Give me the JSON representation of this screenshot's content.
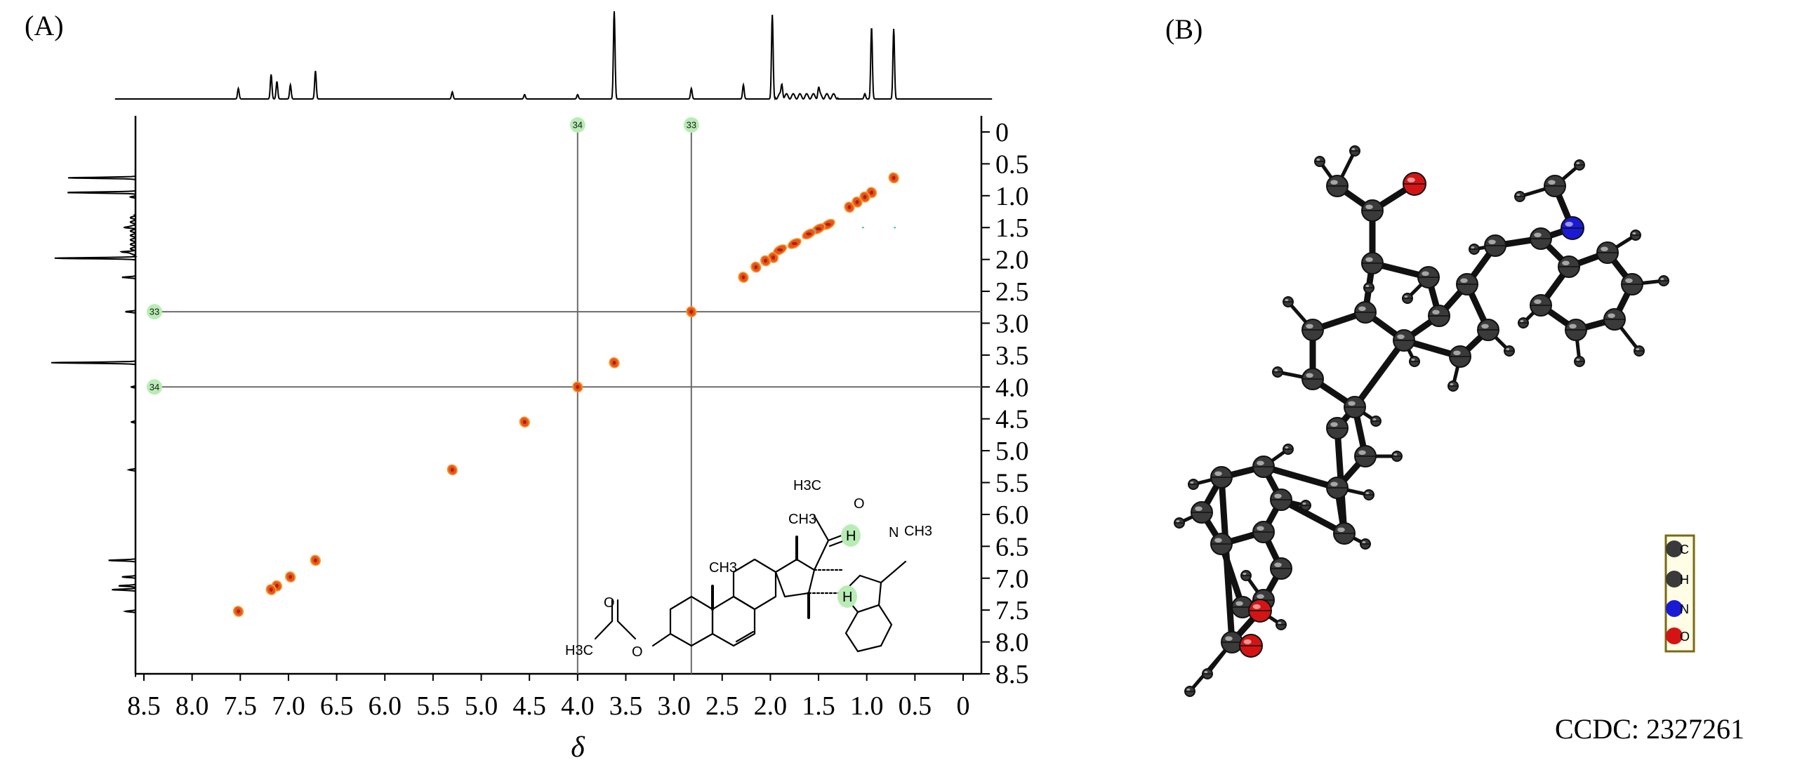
{
  "panels": {
    "a_label": "(A)",
    "b_label": "(B)"
  },
  "chart_data": {
    "type": "heatmap",
    "subtype": "2D NMR correlation map",
    "title": "",
    "xlabel": "δ",
    "ylabel": "",
    "xlim": [
      8.5,
      0
    ],
    "ylim": [
      0,
      8.5
    ],
    "x_ticks": [
      "8.5",
      "8.0",
      "7.5",
      "7.0",
      "6.5",
      "6.0",
      "5.5",
      "5.0",
      "4.5",
      "4.0",
      "3.5",
      "3.0",
      "2.5",
      "2.0",
      "1.5",
      "1.0",
      "0.5",
      "0"
    ],
    "y_ticks": [
      "0",
      "0.5",
      "1.0",
      "1.5",
      "2.0",
      "2.5",
      "3.0",
      "3.5",
      "4.0",
      "4.5",
      "5.0",
      "5.5",
      "6.0",
      "6.5",
      "7.0",
      "7.5",
      "8.0",
      "8.5"
    ],
    "y_axis_side": "right",
    "grid": false,
    "diagonal_peaks": [
      {
        "x": 0.72,
        "y": 0.72
      },
      {
        "x": 0.95,
        "y": 0.95
      },
      {
        "x": 1.02,
        "y": 1.02
      },
      {
        "x": 1.1,
        "y": 1.1
      },
      {
        "x": 1.18,
        "y": 1.18
      },
      {
        "x": 1.4,
        "y": 1.45
      },
      {
        "x": 1.5,
        "y": 1.52
      },
      {
        "x": 1.6,
        "y": 1.6
      },
      {
        "x": 1.75,
        "y": 1.75
      },
      {
        "x": 1.9,
        "y": 1.85
      },
      {
        "x": 1.97,
        "y": 1.97
      },
      {
        "x": 2.05,
        "y": 2.02
      },
      {
        "x": 2.15,
        "y": 2.12
      },
      {
        "x": 2.28,
        "y": 2.28
      },
      {
        "x": 2.82,
        "y": 2.82
      },
      {
        "x": 3.62,
        "y": 3.62
      },
      {
        "x": 4.0,
        "y": 4.0
      },
      {
        "x": 4.55,
        "y": 4.55
      },
      {
        "x": 5.3,
        "y": 5.3
      },
      {
        "x": 6.72,
        "y": 6.72
      },
      {
        "x": 6.98,
        "y": 6.98
      },
      {
        "x": 7.12,
        "y": 7.12
      },
      {
        "x": 7.18,
        "y": 7.18
      },
      {
        "x": 7.52,
        "y": 7.52
      }
    ],
    "cross_lines": [
      {
        "label": "33",
        "shift": 2.82
      },
      {
        "label": "34",
        "shift": 4.0
      }
    ],
    "projection_peaks": [
      {
        "shift": 7.52,
        "height": 0.12
      },
      {
        "shift": 7.18,
        "height": 0.28
      },
      {
        "shift": 7.12,
        "height": 0.2
      },
      {
        "shift": 6.98,
        "height": 0.16
      },
      {
        "shift": 6.72,
        "height": 0.32
      },
      {
        "shift": 5.3,
        "height": 0.08
      },
      {
        "shift": 4.55,
        "height": 0.05
      },
      {
        "shift": 4.0,
        "height": 0.05
      },
      {
        "shift": 3.62,
        "height": 1.0
      },
      {
        "shift": 2.82,
        "height": 0.12
      },
      {
        "shift": 2.28,
        "height": 0.16
      },
      {
        "shift": 1.98,
        "height": 0.96
      },
      {
        "shift": 1.88,
        "height": 0.15
      },
      {
        "shift": 1.5,
        "height": 0.1
      },
      {
        "shift": 1.02,
        "height": 0.06
      },
      {
        "shift": 0.95,
        "height": 0.82
      },
      {
        "shift": 0.72,
        "height": 0.8
      }
    ]
  },
  "structure_labels": {
    "acetyl_methyl": "H3C",
    "ketone_oxygen": "O",
    "c18_methyl": "CH3",
    "c19_methyl": "CH3",
    "h_upper": "H",
    "h_lower": "H",
    "n_label": "N",
    "n_methyl": "CH3",
    "ester_oxygen": "O",
    "ester_carbonyl_o": "O",
    "ester_methyl": "H3C"
  },
  "crystal": {
    "ccdc": "CCDC: 2327261",
    "legend": [
      {
        "symbol": "C",
        "color": "#3a3a3a"
      },
      {
        "symbol": "H",
        "color": "#3a3a3a"
      },
      {
        "symbol": "N",
        "color": "#1a1ad6"
      },
      {
        "symbol": "O",
        "color": "#d41414"
      }
    ]
  },
  "colors": {
    "peak_fill": "#e8551c",
    "peak_core": "#b5200c",
    "peak_ring": "#f29a2e",
    "badge_fill": "#b9ecb5",
    "line": "#6b6b6b",
    "bond": "#111111",
    "carbon": "#3a3a3a",
    "nitrogen": "#1a1ad6",
    "oxygen": "#d41414",
    "legend_frame": "#7a6a12"
  }
}
